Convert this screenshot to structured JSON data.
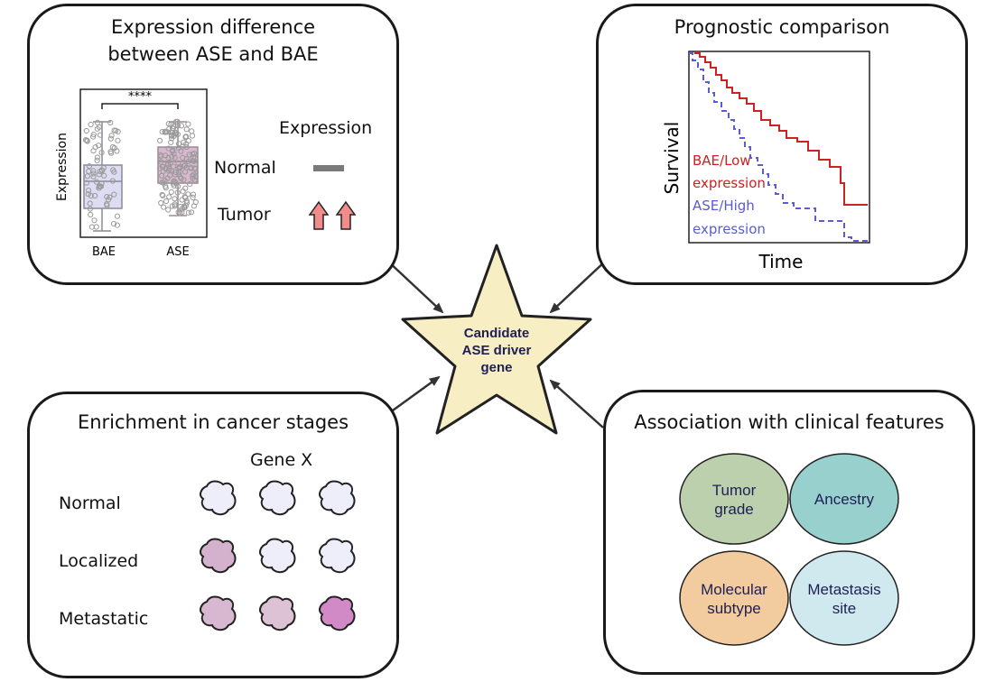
{
  "expression_panel": {
    "title": "Expression difference between ASE and BAE",
    "boxplot": {
      "ylabel": "Expression",
      "categories": [
        "BAE",
        "ASE"
      ],
      "significance": "****"
    },
    "legend": {
      "heading": "Expression",
      "rows": [
        {
          "label": "Normal",
          "marker": "flat-bar"
        },
        {
          "label": "Tumor",
          "marker": "double-up-arrow"
        }
      ]
    },
    "colors": {
      "bae_box": "#dcdcf2",
      "ase_box": "#d9b8cf",
      "arrow": "#f28b8b"
    }
  },
  "prognostic_panel": {
    "title": "Prognostic comparison",
    "xlabel": "Time",
    "ylabel": "Survival",
    "series": [
      {
        "name": "BAE/Low expression",
        "line1": "BAE/Low",
        "line2": "expression",
        "color": "#cc2222",
        "style": "solid"
      },
      {
        "name": "ASE/High expression",
        "line1": "ASE/High",
        "line2": "expression",
        "color": "#5b5bd6",
        "style": "dashed"
      }
    ]
  },
  "center": {
    "label_lines": [
      "Candidate",
      "ASE driver",
      "gene"
    ],
    "fill": "#f8eec4"
  },
  "enrichment_panel": {
    "title": "Enrichment in cancer stages",
    "gene_label": "Gene X",
    "rows": [
      {
        "stage": "Normal",
        "cells": [
          "#eeeefa",
          "#eeeefa",
          "#eeeefa"
        ]
      },
      {
        "stage": "Localized",
        "cells": [
          "#d4b2cd",
          "#eeeefa",
          "#eeeefa"
        ]
      },
      {
        "stage": "Metastatic",
        "cells": [
          "#d8b8d0",
          "#dcc2d4",
          "#d28ac6"
        ]
      }
    ]
  },
  "clinical_panel": {
    "title": "Association with clinical features",
    "features": [
      {
        "label_lines": [
          "Tumor",
          "grade"
        ],
        "color": "#bcd0ad"
      },
      {
        "label_lines": [
          "Ancestry"
        ],
        "color": "#97d0cc"
      },
      {
        "label_lines": [
          "Molecular",
          "subtype"
        ],
        "color": "#f2cc9e"
      },
      {
        "label_lines": [
          "Metastasis",
          "site"
        ],
        "color": "#cfe9ef"
      }
    ]
  }
}
